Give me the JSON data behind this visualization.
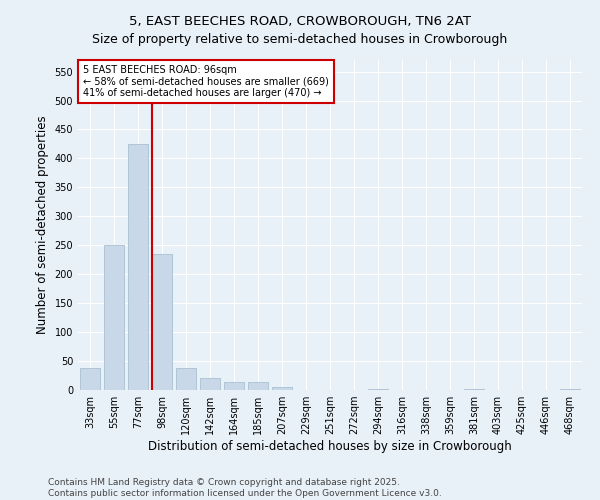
{
  "title": "5, EAST BEECHES ROAD, CROWBOROUGH, TN6 2AT",
  "subtitle": "Size of property relative to semi-detached houses in Crowborough",
  "xlabel": "Distribution of semi-detached houses by size in Crowborough",
  "ylabel": "Number of semi-detached properties",
  "categories": [
    "33sqm",
    "55sqm",
    "77sqm",
    "98sqm",
    "120sqm",
    "142sqm",
    "164sqm",
    "185sqm",
    "207sqm",
    "229sqm",
    "251sqm",
    "272sqm",
    "294sqm",
    "316sqm",
    "338sqm",
    "359sqm",
    "381sqm",
    "403sqm",
    "425sqm",
    "446sqm",
    "468sqm"
  ],
  "values": [
    38,
    251,
    425,
    235,
    38,
    20,
    13,
    13,
    5,
    0,
    0,
    0,
    1,
    0,
    0,
    0,
    1,
    0,
    0,
    0,
    1
  ],
  "bar_color": "#c8d8e8",
  "bar_edge_color": "#a0b8cc",
  "vline_x_index": 3,
  "vline_color": "#cc0000",
  "annotation_title": "5 EAST BEECHES ROAD: 96sqm",
  "annotation_line1": "← 58% of semi-detached houses are smaller (669)",
  "annotation_line2": "41% of semi-detached houses are larger (470) →",
  "annotation_box_color": "#ffffff",
  "annotation_box_edge_color": "#cc0000",
  "ylim": [
    0,
    570
  ],
  "yticks": [
    0,
    50,
    100,
    150,
    200,
    250,
    300,
    350,
    400,
    450,
    500,
    550
  ],
  "bg_color": "#e8f0f8",
  "plot_bg_color": "#e8f0f8",
  "footer1": "Contains HM Land Registry data © Crown copyright and database right 2025.",
  "footer2": "Contains public sector information licensed under the Open Government Licence v3.0.",
  "title_fontsize": 9.5,
  "tick_fontsize": 7,
  "label_fontsize": 8.5,
  "footer_fontsize": 6.5,
  "annotation_fontsize": 7
}
